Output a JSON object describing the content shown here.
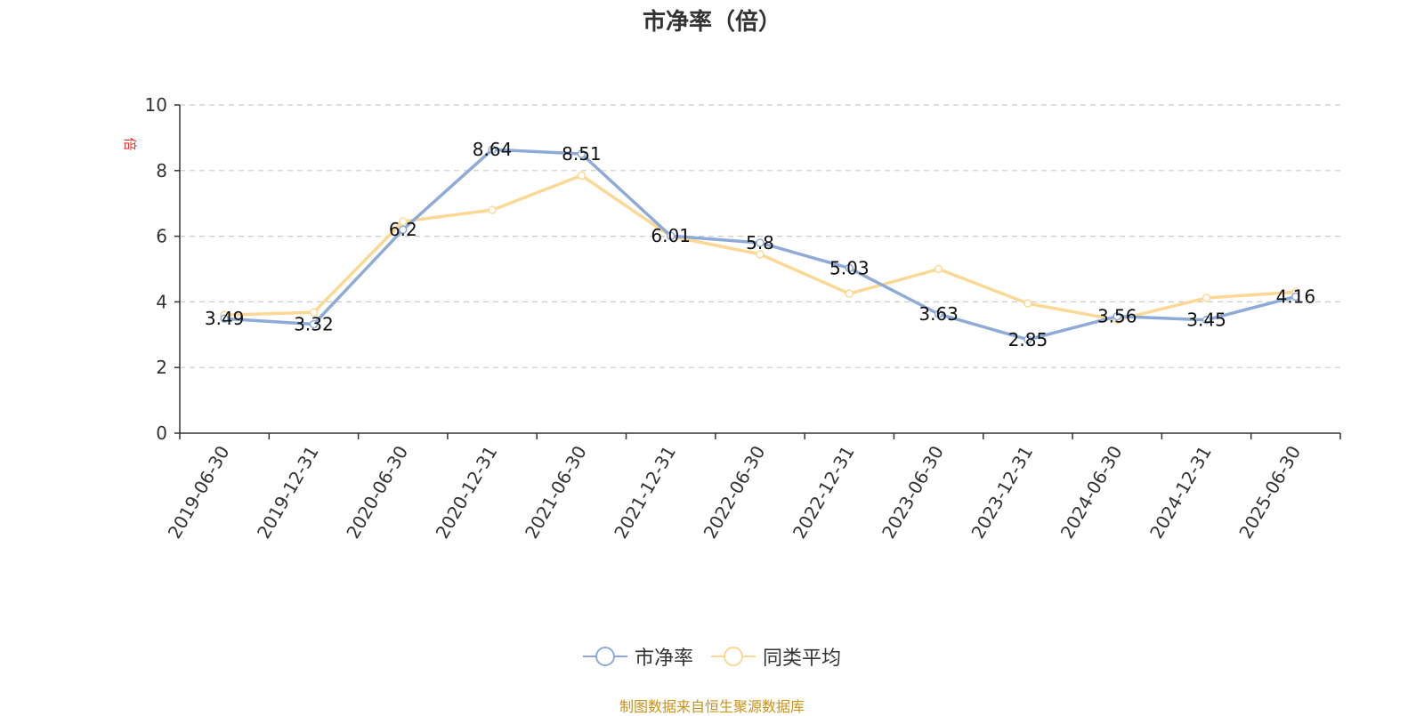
{
  "chart_data": {
    "type": "line",
    "title": "市净率（倍）",
    "ylabel": "倍",
    "ylim": [
      0,
      10
    ],
    "yticks": [
      0,
      2,
      4,
      6,
      8,
      10
    ],
    "categories": [
      "2019-06-30",
      "2019-12-31",
      "2020-06-30",
      "2020-12-31",
      "2021-06-30",
      "2021-12-31",
      "2022-06-30",
      "2022-12-31",
      "2023-06-30",
      "2023-12-31",
      "2024-06-30",
      "2024-12-31",
      "2025-06-30"
    ],
    "series": [
      {
        "name": "市净率",
        "color": "#8eabd8",
        "values": [
          3.49,
          3.32,
          6.2,
          8.64,
          8.51,
          6.01,
          5.8,
          5.03,
          3.63,
          2.85,
          3.56,
          3.45,
          4.16
        ],
        "labels": [
          "3.49",
          "3.32",
          "6.2",
          "8.64",
          "8.51",
          "6.01",
          "5.8",
          "5.03",
          "3.63",
          "2.85",
          "3.56",
          "3.45",
          "4.16"
        ]
      },
      {
        "name": "同类平均",
        "color": "#fbd995",
        "values": [
          3.6,
          3.68,
          6.45,
          6.8,
          7.85,
          6.0,
          5.45,
          4.25,
          5.0,
          3.95,
          3.45,
          4.12,
          4.3
        ]
      }
    ],
    "grid": true,
    "legend_position": "bottom-center",
    "unit_color": "#e8322e"
  },
  "footer": {
    "source": "制图数据来自恒生聚源数据库"
  }
}
